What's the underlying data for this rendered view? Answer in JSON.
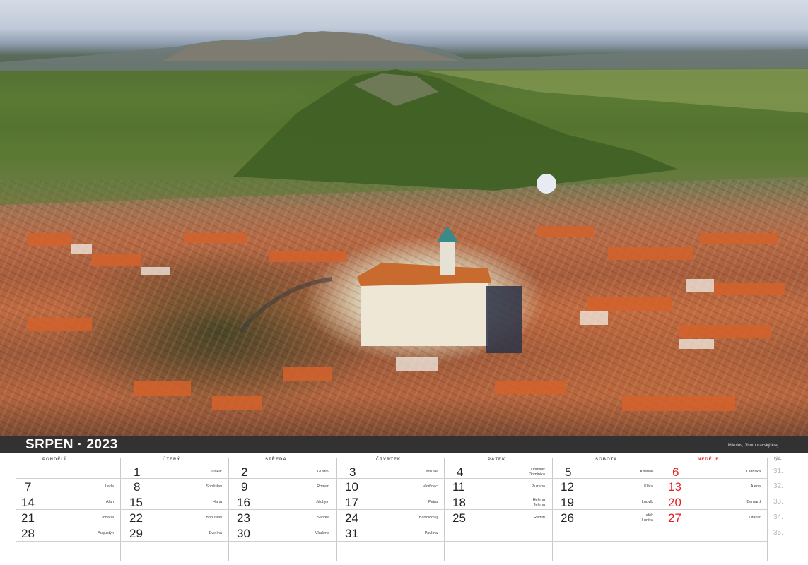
{
  "header": {
    "month": "SRPEN",
    "separator": "·",
    "year": "2023",
    "photo_caption": "Mikulov, Jihomoravský kraj"
  },
  "colors": {
    "sunday": "#e31e24",
    "band": "#323232",
    "text": "#222222"
  },
  "weekdays": [
    "pondělí",
    "úterý",
    "středa",
    "čtvrtek",
    "pátek",
    "sobota",
    "neděle"
  ],
  "week_label": "týd.",
  "weeks": [
    {
      "week": "31.",
      "days": [
        {
          "d": "",
          "n": ""
        },
        {
          "d": "1",
          "n": "Oskar"
        },
        {
          "d": "2",
          "n": "Gustav"
        },
        {
          "d": "3",
          "n": "Miluše"
        },
        {
          "d": "4",
          "n": "Dominik\nDominika"
        },
        {
          "d": "5",
          "n": "Kristián"
        },
        {
          "d": "6",
          "n": "Oldřiška"
        }
      ]
    },
    {
      "week": "32.",
      "days": [
        {
          "d": "7",
          "n": "Lada"
        },
        {
          "d": "8",
          "n": "Soběslav"
        },
        {
          "d": "9",
          "n": "Roman"
        },
        {
          "d": "10",
          "n": "Vavřinec"
        },
        {
          "d": "11",
          "n": "Zuzana"
        },
        {
          "d": "12",
          "n": "Klára"
        },
        {
          "d": "13",
          "n": "Alena"
        }
      ]
    },
    {
      "week": "33.",
      "days": [
        {
          "d": "14",
          "n": "Alan"
        },
        {
          "d": "15",
          "n": "Hana"
        },
        {
          "d": "16",
          "n": "Jáchym"
        },
        {
          "d": "17",
          "n": "Petra"
        },
        {
          "d": "18",
          "n": "Helena\nJelena"
        },
        {
          "d": "19",
          "n": "Ludvík"
        },
        {
          "d": "20",
          "n": "Bernard"
        }
      ]
    },
    {
      "week": "34.",
      "days": [
        {
          "d": "21",
          "n": "Johana"
        },
        {
          "d": "22",
          "n": "Bohuslav"
        },
        {
          "d": "23",
          "n": "Sandra"
        },
        {
          "d": "24",
          "n": "Bartoloměj"
        },
        {
          "d": "25",
          "n": "Radim"
        },
        {
          "d": "26",
          "n": "Luděk\nLudiša"
        },
        {
          "d": "27",
          "n": "Otakar"
        }
      ]
    },
    {
      "week": "35.",
      "days": [
        {
          "d": "28",
          "n": "Augustýn"
        },
        {
          "d": "29",
          "n": "Evelína"
        },
        {
          "d": "30",
          "n": "Vladěna"
        },
        {
          "d": "31",
          "n": "Pavlína"
        },
        {
          "d": "",
          "n": ""
        },
        {
          "d": "",
          "n": ""
        },
        {
          "d": "",
          "n": ""
        }
      ]
    }
  ]
}
